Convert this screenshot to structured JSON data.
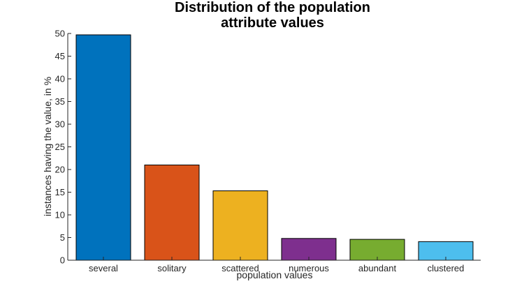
{
  "chart_data": {
    "type": "bar",
    "title": [
      "Distribution of the population",
      "attribute values"
    ],
    "xlabel": "population values",
    "ylabel": "instances having the value, in %",
    "categories": [
      "several",
      "solitary",
      "scattered",
      "numerous",
      "abundant",
      "clustered"
    ],
    "values": [
      49.7,
      21.0,
      15.3,
      4.8,
      4.6,
      4.1
    ],
    "colors": [
      "#0072BD",
      "#D95319",
      "#EDB120",
      "#7E2F8E",
      "#77AC30",
      "#4DBEEE"
    ],
    "ylim": [
      0,
      50
    ],
    "yticks": [
      0,
      5,
      10,
      15,
      20,
      25,
      30,
      35,
      40,
      45,
      50
    ],
    "grid": false,
    "legend": "none"
  }
}
